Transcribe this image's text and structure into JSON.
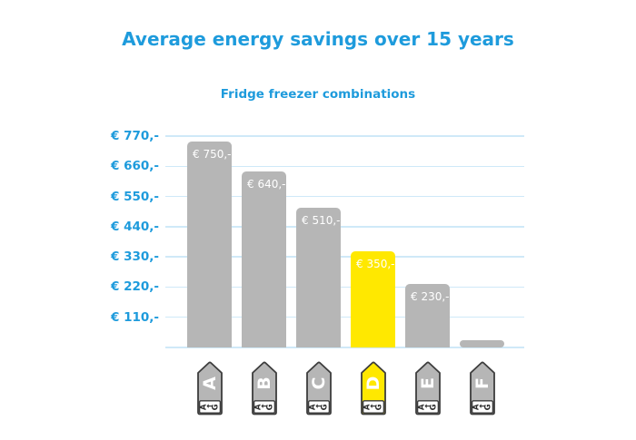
{
  "title": "Average energy savings over 15 years",
  "subtitle": "Fridge freezer combinations",
  "colors": {
    "accent_blue": "#1e9bdc",
    "gridline_blue": "#cfe9f8",
    "bar_gray": "#b6b6b6",
    "highlight_yellow": "#ffe800",
    "bar_label_white": "#ffffff",
    "tag_outline": "#3d3d3d",
    "tag_letter_white": "#ffffff",
    "tag_scale_text": "#2e2e2e",
    "background": "#ffffff"
  },
  "chart_data": {
    "type": "bar",
    "title": "Average energy savings over 15 years",
    "subtitle": "Fridge freezer combinations",
    "categories": [
      "A",
      "B",
      "C",
      "D",
      "E",
      "F"
    ],
    "values": [
      750,
      640,
      510,
      350,
      230,
      25
    ],
    "bar_labels": [
      "€ 750,-",
      "€ 640,-",
      "€ 510,-",
      "€ 350,-",
      "€ 230,-",
      ""
    ],
    "bar_colors": [
      "#b6b6b6",
      "#b6b6b6",
      "#b6b6b6",
      "#ffe800",
      "#b6b6b6",
      "#b6b6b6"
    ],
    "highlighted_category": "D",
    "y_ticks": [
      770,
      660,
      550,
      440,
      330,
      220,
      110
    ],
    "y_tick_labels": [
      "€ 770,-",
      "€ 660,-",
      "€ 550,-",
      "€ 440,-",
      "€ 330,-",
      "€ 220,-",
      "€ 110,-"
    ],
    "ylim": [
      0,
      770
    ],
    "grid": "horizontal",
    "legend": "none",
    "x_axis_marker": "eu-energy-class-tag",
    "tag_scale": {
      "first": "A",
      "arrow": "←",
      "last": "G"
    }
  }
}
